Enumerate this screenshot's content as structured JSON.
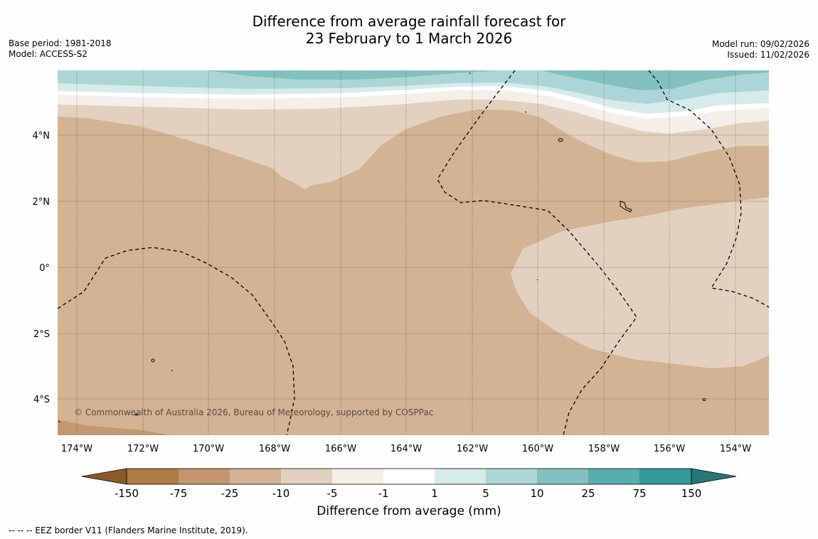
{
  "title": {
    "line1": "Difference from average rainfall forecast for",
    "line2": "23 February to 1 March 2026"
  },
  "meta_left": {
    "base_period": "Base period: 1981-2018",
    "model": "Model: ACCESS-S2"
  },
  "meta_right": {
    "model_run": "Model run: 09/02/2026",
    "issued": "Issued: 11/02/2026"
  },
  "map": {
    "lat_labels": [
      "4°N",
      "2°N",
      "0°",
      "2°S",
      "4°S"
    ],
    "lon_labels": [
      "174°W",
      "172°W",
      "170°W",
      "168°W",
      "166°W",
      "164°W",
      "162°W",
      "160°W",
      "158°W",
      "156°W",
      "154°W"
    ],
    "copyright": "© Commonwealth of Australia 2026, Bureau of Meteorology, supported by COSPPac"
  },
  "colorbar": {
    "ticks": [
      "-150",
      "-75",
      "-25",
      "-10",
      "-5",
      "-1",
      "1",
      "5",
      "10",
      "25",
      "75",
      "150"
    ],
    "colors": [
      "#8c5a2a",
      "#b07b45",
      "#c4956c",
      "#d3b393",
      "#e3d1c0",
      "#f4efe9",
      "#ffffff",
      "#d7ebea",
      "#acd6d6",
      "#83c0bf",
      "#5aadad",
      "#339999",
      "#267878"
    ],
    "label": "Difference from average (mm)"
  },
  "eez_note": "--  --  -- EEZ border V11 (Flanders Marine Institute, 2019)."
}
